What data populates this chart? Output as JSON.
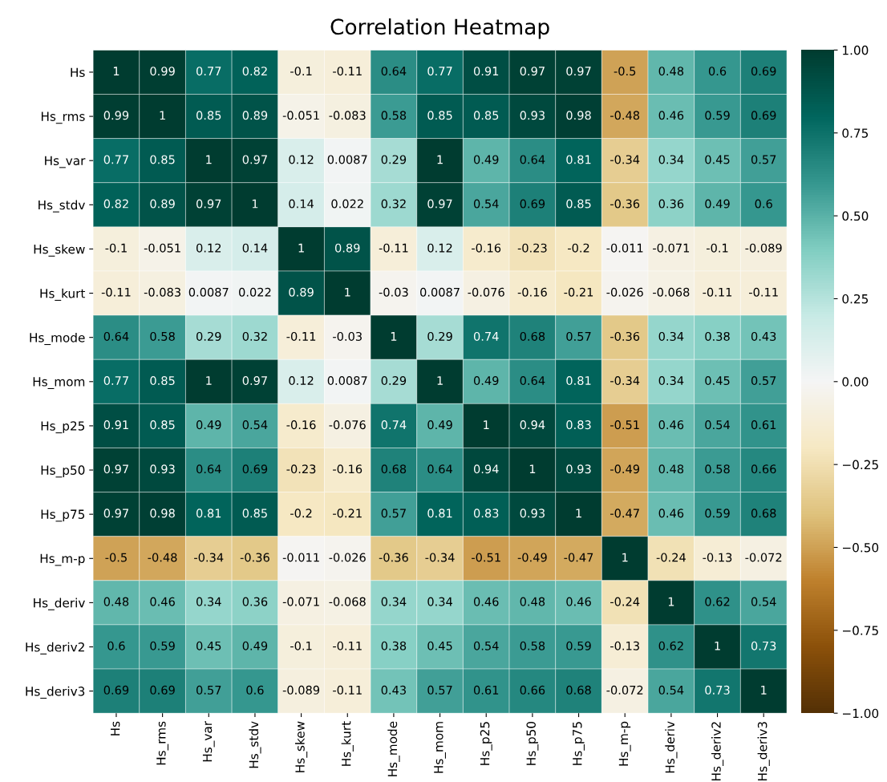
{
  "chart_data": {
    "type": "heatmap",
    "title": "Correlation Heatmap",
    "categories": [
      "Hs",
      "Hs_rms",
      "Hs_var",
      "Hs_stdv",
      "Hs_skew",
      "Hs_kurt",
      "Hs_mode",
      "Hs_mom",
      "Hs_p25",
      "Hs_p50",
      "Hs_p75",
      "Hs_m-p",
      "Hs_deriv",
      "Hs_deriv2",
      "Hs_deriv3"
    ],
    "y_categories": [
      "Hs",
      "Hs_rms",
      "Hs_var",
      "Hs_stdv",
      "Hs_skew",
      "Hs_kurt",
      "Hs_mode",
      "Hs_mom",
      "Hs_p25",
      "Hs_p50",
      "Hs_p75",
      "Hs_m-p",
      "Hs_deriv",
      "Hs_deriv2",
      "Hs_deriv3"
    ],
    "cells": [
      [
        1,
        0.99,
        0.77,
        0.82,
        -0.1,
        -0.11,
        0.64,
        0.77,
        0.91,
        0.97,
        0.97,
        -0.5,
        0.48,
        0.6,
        0.69
      ],
      [
        0.99,
        1,
        0.85,
        0.89,
        -0.051,
        -0.083,
        0.58,
        0.85,
        0.85,
        0.93,
        0.98,
        -0.48,
        0.46,
        0.59,
        0.69
      ],
      [
        0.77,
        0.85,
        1,
        0.97,
        0.12,
        0.0087,
        0.29,
        1,
        0.49,
        0.64,
        0.81,
        -0.34,
        0.34,
        0.45,
        0.57
      ],
      [
        0.82,
        0.89,
        0.97,
        1,
        0.14,
        0.022,
        0.32,
        0.97,
        0.54,
        0.69,
        0.85,
        -0.36,
        0.36,
        0.49,
        0.6
      ],
      [
        -0.1,
        -0.051,
        0.12,
        0.14,
        1,
        0.89,
        -0.11,
        0.12,
        -0.16,
        -0.23,
        -0.2,
        -0.011,
        -0.071,
        -0.1,
        -0.089
      ],
      [
        -0.11,
        -0.083,
        0.0087,
        0.022,
        0.89,
        1,
        -0.03,
        0.0087,
        -0.076,
        -0.16,
        -0.21,
        -0.026,
        -0.068,
        -0.11,
        -0.11
      ],
      [
        0.64,
        0.58,
        0.29,
        0.32,
        -0.11,
        -0.03,
        1,
        0.29,
        0.74,
        0.68,
        0.57,
        -0.36,
        0.34,
        0.38,
        0.43
      ],
      [
        0.77,
        0.85,
        1,
        0.97,
        0.12,
        0.0087,
        0.29,
        1,
        0.49,
        0.64,
        0.81,
        -0.34,
        0.34,
        0.45,
        0.57
      ],
      [
        0.91,
        0.85,
        0.49,
        0.54,
        -0.16,
        -0.076,
        0.74,
        0.49,
        1,
        0.94,
        0.83,
        -0.51,
        0.46,
        0.54,
        0.61
      ],
      [
        0.97,
        0.93,
        0.64,
        0.69,
        -0.23,
        -0.16,
        0.68,
        0.64,
        0.94,
        1,
        0.93,
        -0.49,
        0.48,
        0.58,
        0.66
      ],
      [
        0.97,
        0.98,
        0.81,
        0.85,
        -0.2,
        -0.21,
        0.57,
        0.81,
        0.83,
        0.93,
        1,
        -0.47,
        0.46,
        0.59,
        0.68
      ],
      [
        -0.5,
        -0.48,
        -0.34,
        -0.36,
        -0.011,
        -0.026,
        -0.36,
        -0.34,
        -0.51,
        -0.49,
        -0.47,
        1,
        -0.24,
        -0.13,
        -0.072
      ],
      [
        0.48,
        0.46,
        0.34,
        0.36,
        -0.071,
        -0.068,
        0.34,
        0.34,
        0.46,
        0.48,
        0.46,
        -0.24,
        1,
        0.62,
        0.54
      ],
      [
        0.6,
        0.59,
        0.45,
        0.49,
        -0.1,
        -0.11,
        0.38,
        0.45,
        0.54,
        0.58,
        0.59,
        -0.13,
        0.62,
        1,
        0.73
      ],
      [
        0.69,
        0.69,
        0.57,
        0.6,
        -0.089,
        -0.11,
        0.43,
        0.57,
        0.61,
        0.66,
        0.68,
        -0.072,
        0.54,
        0.73,
        1
      ]
    ],
    "data_labels": true,
    "clim": [
      -1,
      1
    ],
    "cticks": [
      {
        "value": -1,
        "label": "−1.00"
      },
      {
        "value": -0.75,
        "label": "−0.75"
      },
      {
        "value": -0.5,
        "label": "−0.50"
      },
      {
        "value": -0.25,
        "label": "−0.25"
      },
      {
        "value": 0,
        "label": "0.00"
      },
      {
        "value": 0.25,
        "label": "0.25"
      },
      {
        "value": 0.5,
        "label": "0.50"
      },
      {
        "value": 0.75,
        "label": "0.75"
      },
      {
        "value": 1,
        "label": "1.00"
      }
    ]
  }
}
